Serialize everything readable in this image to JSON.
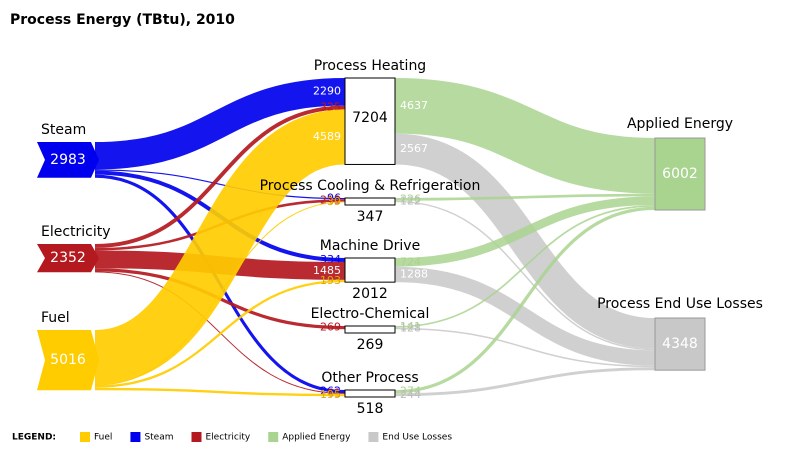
{
  "title": "Process Energy (TBtu), 2010",
  "nodes": [
    {
      "label": "Steam",
      "value": 2983,
      "color": "#0000ee"
    },
    {
      "label": "Electricity",
      "value": 2352,
      "color": "#b3191f"
    },
    {
      "label": "Fuel",
      "value": 5016,
      "color": "#ffcc00"
    },
    {
      "label": "Process Heating",
      "value": 7204
    },
    {
      "label": "Process Cooling & Refrigeration",
      "value": 347
    },
    {
      "label": "Machine Drive",
      "value": 2012
    },
    {
      "label": "Electro-Chemical",
      "value": 269
    },
    {
      "label": "Other Process",
      "value": 518
    },
    {
      "label": "Applied Energy",
      "value": 6002,
      "color": "#a9d48f"
    },
    {
      "label": "Process End Use Losses",
      "value": 4348,
      "color": "#c8c8c8"
    }
  ],
  "links": [
    {
      "source": 0,
      "target": 3,
      "value": 2290
    },
    {
      "source": 0,
      "target": 4,
      "value": 96
    },
    {
      "source": 0,
      "target": 5,
      "value": 334
    },
    {
      "source": 0,
      "target": 7,
      "value": 262
    },
    {
      "source": 1,
      "target": 3,
      "value": 325
    },
    {
      "source": 1,
      "target": 4,
      "value": 212
    },
    {
      "source": 1,
      "target": 5,
      "value": 1485
    },
    {
      "source": 1,
      "target": 6,
      "value": 269
    },
    {
      "source": 1,
      "target": 7,
      "value": 61
    },
    {
      "source": 2,
      "target": 3,
      "value": 4589
    },
    {
      "source": 2,
      "target": 4,
      "value": 39
    },
    {
      "source": 2,
      "target": 5,
      "value": 193
    },
    {
      "source": 2,
      "target": 7,
      "value": 195
    },
    {
      "source": 3,
      "target": 8,
      "value": 4637
    },
    {
      "source": 3,
      "target": 9,
      "value": 2567
    },
    {
      "source": 4,
      "target": 8,
      "value": 226
    },
    {
      "source": 4,
      "target": 9,
      "value": 122
    },
    {
      "source": 5,
      "target": 8,
      "value": 724
    },
    {
      "source": 5,
      "target": 9,
      "value": 1288
    },
    {
      "source": 6,
      "target": 8,
      "value": 141
    },
    {
      "source": 6,
      "target": 9,
      "value": 128
    },
    {
      "source": 7,
      "target": 8,
      "value": 274
    },
    {
      "source": 7,
      "target": 9,
      "value": 244
    }
  ],
  "legend": {
    "title": "LEGEND:",
    "items": [
      {
        "label": "Fuel",
        "color": "#ffcc00"
      },
      {
        "label": "Steam",
        "color": "#0000ee"
      },
      {
        "label": "Electricity",
        "color": "#b3191f"
      },
      {
        "label": "Applied Energy",
        "color": "#a9d48f"
      },
      {
        "label": "End Use Losses",
        "color": "#c8c8c8"
      }
    ]
  }
}
